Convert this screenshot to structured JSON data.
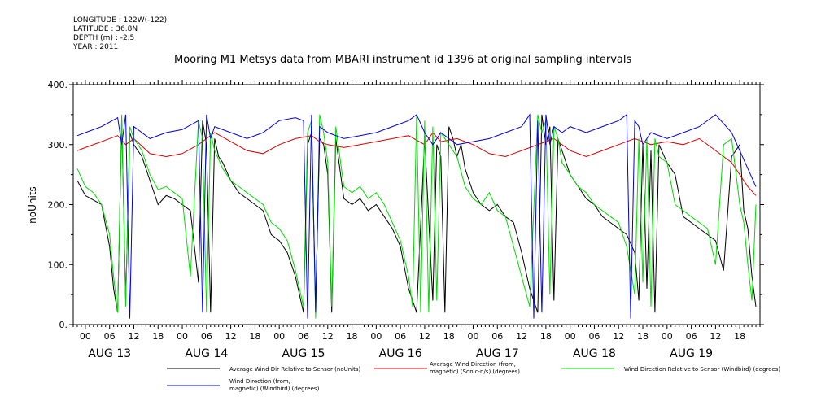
{
  "header": {
    "longitude": "LONGITUDE : 122W(-122)",
    "latitude": "LATITUDE : 36.8N",
    "depth": "DEPTH (m) : -2.5",
    "year": "YEAR : 2011"
  },
  "chart_data": {
    "type": "line",
    "title": "Mooring M1 Metsys data from MBARI instrument id 1396 at original sampling intervals",
    "ylabel": "noUnits",
    "ylim": [
      0,
      400
    ],
    "y_ticks": [
      "0.",
      "100.",
      "200.",
      "300.",
      "400."
    ],
    "xlim_hours": [
      -3,
      167
    ],
    "x_hour_labels": [
      "00",
      "06",
      "12",
      "18",
      "00",
      "06",
      "12",
      "18",
      "00",
      "06",
      "12",
      "18",
      "00",
      "06",
      "12",
      "18",
      "00",
      "06",
      "12",
      "18",
      "00",
      "06",
      "12",
      "18",
      "00",
      "06",
      "12",
      "18"
    ],
    "x_date_labels": [
      "AUG 13",
      "AUG 14",
      "AUG 15",
      "AUG 16",
      "AUG 17",
      "AUG 18",
      "AUG 19"
    ],
    "grid": false,
    "series": [
      {
        "name": "Average Wind Dir Relative to Sensor (noUnits)",
        "color": "#000000",
        "x": [
          -2,
          0,
          4,
          6,
          7,
          8,
          9,
          10,
          11,
          12,
          14,
          16,
          18,
          20,
          22,
          24,
          26,
          28,
          29,
          30,
          31,
          32,
          33,
          34,
          36,
          38,
          40,
          42,
          44,
          46,
          48,
          50,
          52,
          54,
          55,
          56,
          57,
          58,
          59,
          60,
          61,
          62,
          64,
          66,
          68,
          70,
          72,
          74,
          76,
          78,
          80,
          82,
          84,
          86,
          87,
          88,
          89,
          90,
          91,
          92,
          93,
          94,
          96,
          98,
          100,
          102,
          104,
          106,
          108,
          110,
          112,
          113,
          114,
          115,
          116,
          117,
          118,
          120,
          122,
          124,
          126,
          128,
          130,
          132,
          134,
          136,
          137,
          138,
          139,
          140,
          141,
          142,
          144,
          146,
          148,
          150,
          152,
          154,
          156,
          158,
          160,
          162,
          163,
          164,
          165,
          166
        ],
        "values": [
          240,
          215,
          200,
          130,
          60,
          20,
          340,
          40,
          320,
          300,
          280,
          240,
          200,
          215,
          210,
          200,
          190,
          70,
          340,
          300,
          20,
          310,
          280,
          270,
          240,
          220,
          210,
          200,
          190,
          150,
          140,
          120,
          80,
          20,
          300,
          320,
          30,
          310,
          300,
          250,
          20,
          310,
          210,
          200,
          210,
          190,
          200,
          180,
          160,
          130,
          60,
          20,
          310,
          40,
          300,
          280,
          20,
          330,
          310,
          280,
          300,
          260,
          220,
          200,
          190,
          200,
          180,
          170,
          120,
          60,
          20,
          350,
          300,
          330,
          40,
          310,
          290,
          250,
          230,
          210,
          200,
          180,
          170,
          160,
          150,
          120,
          40,
          300,
          60,
          290,
          20,
          300,
          270,
          250,
          180,
          170,
          160,
          150,
          140,
          90,
          280,
          300,
          190,
          160,
          80,
          30
        ]
      },
      {
        "name": "Average Wind Direction (from, magnetic) (Sonic-n/s) (degrees)",
        "color": "#dd0000",
        "x": [
          -2,
          0,
          4,
          8,
          10,
          12,
          16,
          20,
          24,
          28,
          30,
          32,
          36,
          40,
          44,
          48,
          52,
          56,
          58,
          60,
          64,
          68,
          72,
          76,
          80,
          84,
          86,
          88,
          92,
          96,
          100,
          104,
          108,
          112,
          116,
          120,
          124,
          128,
          132,
          136,
          140,
          144,
          148,
          152,
          156,
          160,
          164,
          166
        ],
        "values": [
          290,
          295,
          305,
          315,
          300,
          310,
          285,
          280,
          285,
          300,
          310,
          320,
          305,
          290,
          285,
          300,
          310,
          315,
          305,
          300,
          295,
          300,
          305,
          310,
          315,
          300,
          320,
          305,
          310,
          300,
          285,
          280,
          290,
          300,
          310,
          290,
          280,
          290,
          300,
          310,
          300,
          305,
          300,
          310,
          290,
          270,
          230,
          215
        ]
      },
      {
        "name": "Wind Direction Relative to Sensor (Windbird) (degrees)",
        "color": "#00dd00",
        "x": [
          -2,
          0,
          2,
          4,
          6,
          7,
          8,
          9,
          10,
          11,
          12,
          14,
          16,
          18,
          20,
          22,
          24,
          26,
          28,
          29,
          30,
          31,
          32,
          34,
          36,
          38,
          40,
          42,
          44,
          46,
          48,
          50,
          52,
          54,
          55,
          56,
          57,
          58,
          59,
          60,
          61,
          62,
          64,
          66,
          68,
          70,
          72,
          74,
          76,
          78,
          80,
          81,
          82,
          83,
          84,
          85,
          86,
          87,
          88,
          90,
          92,
          94,
          96,
          98,
          100,
          102,
          104,
          106,
          108,
          110,
          112,
          113,
          114,
          115,
          116,
          117,
          118,
          120,
          122,
          124,
          126,
          128,
          130,
          132,
          134,
          136,
          137,
          138,
          139,
          140,
          141,
          142,
          144,
          146,
          148,
          150,
          152,
          154,
          156,
          158,
          160,
          162,
          163,
          164,
          165,
          166
        ],
        "values": [
          260,
          230,
          220,
          200,
          150,
          80,
          20,
          350,
          30,
          330,
          310,
          290,
          250,
          225,
          230,
          220,
          210,
          80,
          340,
          310,
          20,
          320,
          290,
          260,
          240,
          230,
          220,
          210,
          200,
          170,
          160,
          140,
          90,
          30,
          320,
          340,
          10,
          350,
          320,
          270,
          30,
          330,
          230,
          220,
          230,
          210,
          220,
          200,
          170,
          140,
          80,
          30,
          350,
          20,
          340,
          20,
          330,
          40,
          320,
          300,
          280,
          230,
          210,
          200,
          220,
          190,
          180,
          130,
          80,
          30,
          350,
          320,
          340,
          50,
          330,
          310,
          270,
          250,
          230,
          220,
          200,
          190,
          180,
          170,
          130,
          50,
          310,
          70,
          310,
          30,
          310,
          280,
          270,
          200,
          190,
          180,
          170,
          160,
          100,
          300,
          310,
          200,
          170,
          100,
          40,
          200
        ]
      },
      {
        "name": "Wind Direction (from, magnetic) (Windbird) (degrees)",
        "color": "#0000dd",
        "x": [
          -2,
          0,
          4,
          8,
          9,
          10,
          11,
          12,
          16,
          20,
          24,
          28,
          29,
          30,
          31,
          32,
          36,
          40,
          44,
          48,
          52,
          54,
          55,
          56,
          57,
          58,
          60,
          64,
          68,
          72,
          76,
          80,
          82,
          84,
          86,
          88,
          90,
          92,
          96,
          100,
          104,
          108,
          110,
          111,
          112,
          113,
          114,
          115,
          116,
          118,
          120,
          124,
          128,
          132,
          134,
          135,
          136,
          137,
          138,
          140,
          144,
          148,
          152,
          156,
          160,
          164,
          166
        ],
        "values": [
          315,
          320,
          330,
          345,
          300,
          350,
          10,
          330,
          310,
          320,
          325,
          340,
          20,
          350,
          310,
          330,
          320,
          310,
          320,
          340,
          345,
          340,
          10,
          350,
          20,
          330,
          320,
          310,
          315,
          320,
          330,
          340,
          350,
          320,
          300,
          320,
          310,
          300,
          305,
          310,
          320,
          330,
          350,
          10,
          340,
          20,
          350,
          300,
          330,
          320,
          330,
          320,
          330,
          340,
          350,
          10,
          340,
          330,
          300,
          320,
          310,
          320,
          330,
          350,
          320,
          260,
          230
        ]
      }
    ]
  }
}
